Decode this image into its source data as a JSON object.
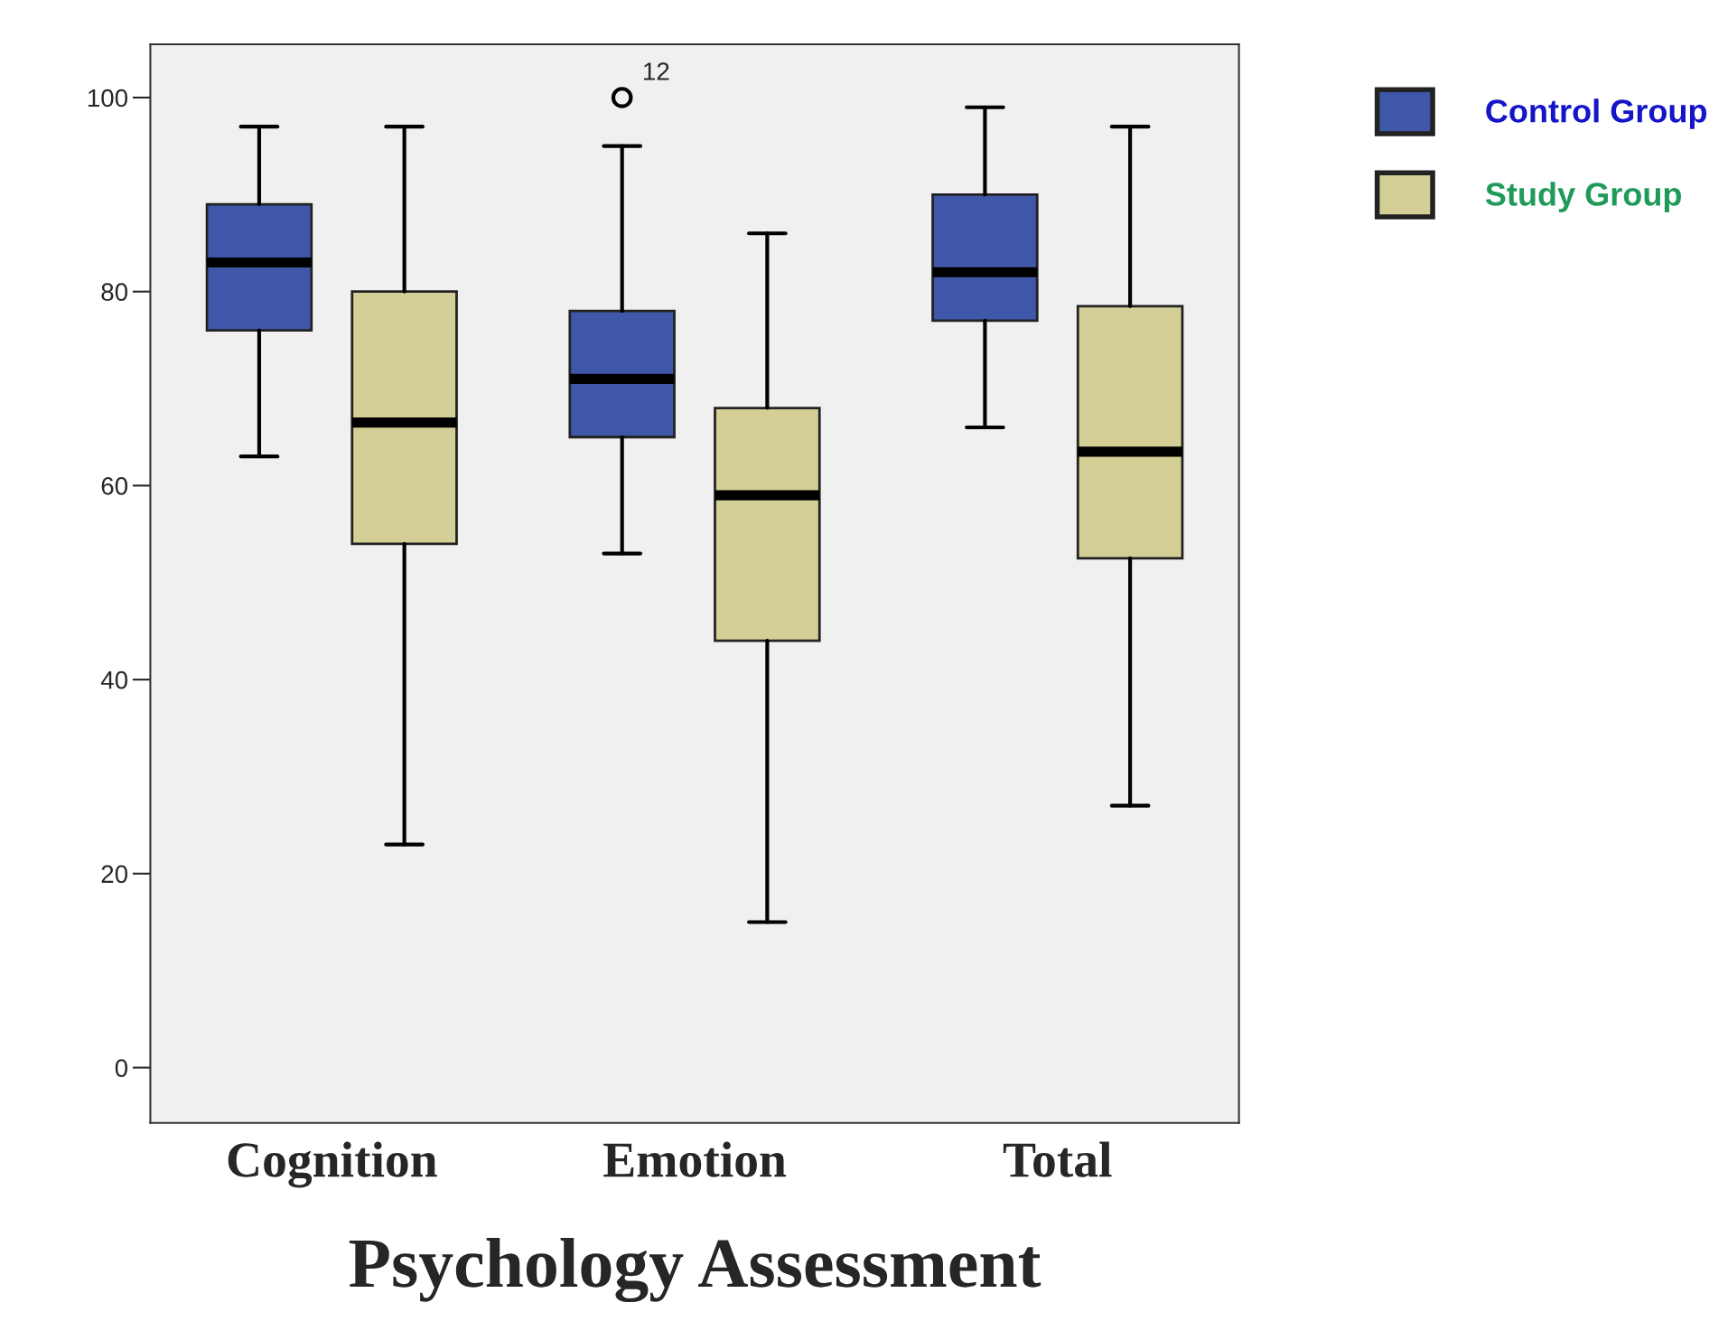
{
  "chart_data": {
    "type": "box",
    "xlabel": "Psychology Assessment",
    "categories": [
      "Cognition",
      "Emotion",
      "Total"
    ],
    "series": [
      {
        "name": "Control Group",
        "color": "#3f57a9",
        "boxes": [
          {
            "low": 63,
            "q1": 76,
            "median": 83,
            "q3": 89,
            "high": 97
          },
          {
            "low": 53,
            "q1": 65,
            "median": 71,
            "q3": 78,
            "high": 95,
            "outliers": [
              100
            ]
          },
          {
            "low": 66,
            "q1": 77,
            "median": 82,
            "q3": 90,
            "high": 99
          }
        ]
      },
      {
        "name": "Study Group",
        "color": "#d4cf96",
        "boxes": [
          {
            "low": 23,
            "q1": 54,
            "median": 66.5,
            "q3": 80,
            "high": 97
          },
          {
            "low": 15,
            "q1": 44,
            "median": 59,
            "q3": 68,
            "high": 86
          },
          {
            "low": 27,
            "q1": 52.5,
            "median": 63.5,
            "q3": 78.5,
            "high": 97
          }
        ]
      }
    ],
    "annotations": [
      "12"
    ],
    "ylim": [
      -5.7,
      105.5
    ],
    "yticks": [
      0,
      20,
      40,
      60,
      80,
      100
    ],
    "grid": false,
    "legend": "top right"
  }
}
